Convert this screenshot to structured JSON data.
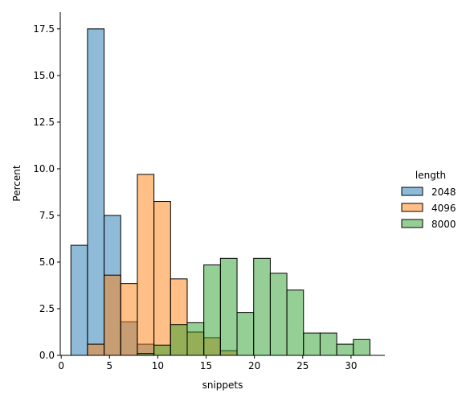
{
  "chart_data": {
    "type": "bar",
    "xlabel": "snippets",
    "ylabel": "Percent",
    "xlim": [
      -0.1,
      33.5
    ],
    "ylim": [
      0,
      18.4
    ],
    "xticks": [
      0,
      5,
      10,
      15,
      20,
      25,
      30
    ],
    "yticks": [
      0.0,
      2.5,
      5.0,
      7.5,
      10.0,
      12.5,
      15.0,
      17.5
    ],
    "x_tick_labels": [
      "0",
      "5",
      "10",
      "15",
      "20",
      "25",
      "30"
    ],
    "y_tick_labels": [
      "0.0",
      "2.5",
      "5.0",
      "7.5",
      "10.0",
      "12.5",
      "15.0",
      "17.5"
    ],
    "bins": [
      [
        1.0,
        2.72
      ],
      [
        2.72,
        4.44
      ],
      [
        4.44,
        6.16
      ],
      [
        6.16,
        7.88
      ],
      [
        7.88,
        9.6
      ],
      [
        9.6,
        11.32
      ],
      [
        11.32,
        13.04
      ],
      [
        13.04,
        14.76
      ],
      [
        14.76,
        16.48
      ],
      [
        16.48,
        18.2
      ],
      [
        18.2,
        19.92
      ],
      [
        19.92,
        21.64
      ],
      [
        21.64,
        23.36
      ],
      [
        23.36,
        25.08
      ],
      [
        25.08,
        26.8
      ],
      [
        26.8,
        28.52
      ],
      [
        28.52,
        30.24
      ],
      [
        30.24,
        31.96
      ]
    ],
    "legend": {
      "title": "length",
      "placement": "right"
    },
    "series": [
      {
        "name": "2048",
        "color": "#1f77b4",
        "values": [
          5.9,
          17.5,
          7.5,
          1.8,
          0.6,
          0,
          0,
          0,
          0,
          0,
          0,
          0,
          0,
          0,
          0,
          0,
          0,
          0
        ]
      },
      {
        "name": "4096",
        "color": "#ff7f0e",
        "values": [
          0,
          0.6,
          4.3,
          3.85,
          9.7,
          8.25,
          4.1,
          1.25,
          0.95,
          0.25,
          0,
          0,
          0,
          0,
          0,
          0,
          0,
          0
        ]
      },
      {
        "name": "8000",
        "color": "#2ca02c",
        "values": [
          0,
          0,
          0,
          0,
          0.1,
          0.55,
          1.65,
          1.75,
          4.85,
          5.2,
          2.3,
          5.2,
          4.4,
          3.5,
          1.2,
          1.2,
          0.6,
          0.85
        ]
      }
    ]
  }
}
